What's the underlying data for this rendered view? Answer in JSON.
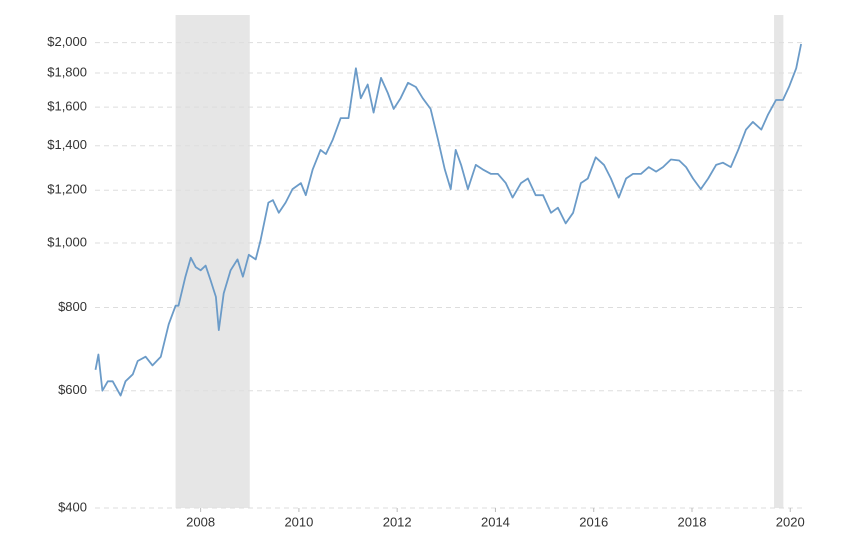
{
  "chart_data": {
    "type": "line",
    "log_scale": true,
    "grid": true,
    "xlim": [
      2005.85,
      2020.3
    ],
    "xticks": [
      2008,
      2010,
      2012,
      2014,
      2016,
      2018,
      2020
    ],
    "ylim": [
      400,
      2200
    ],
    "yticks": [
      {
        "value": 400,
        "label": "$400"
      },
      {
        "value": 600,
        "label": "$600"
      },
      {
        "value": 800,
        "label": "$800"
      },
      {
        "value": 1000,
        "label": "$1,000"
      },
      {
        "value": 1200,
        "label": "$1,200"
      },
      {
        "value": 1400,
        "label": "$1,400"
      },
      {
        "value": 1600,
        "label": "$1,600"
      },
      {
        "value": 1800,
        "label": "$1,800"
      },
      {
        "value": 2000,
        "label": "$2,000"
      }
    ],
    "recessions": [
      [
        2007.49,
        2009.0
      ],
      [
        2019.67,
        2019.86
      ]
    ],
    "recession_color": "#e6e6e6",
    "x": [
      2005.86,
      2005.92,
      2006.0,
      2006.11,
      2006.21,
      2006.37,
      2006.47,
      2006.62,
      2006.72,
      2006.88,
      2007.02,
      2007.19,
      2007.35,
      2007.49,
      2007.55,
      2007.69,
      2007.8,
      2007.9,
      2008.0,
      2008.1,
      2008.2,
      2008.31,
      2008.37,
      2008.47,
      2008.61,
      2008.75,
      2008.86,
      2008.98,
      2009.12,
      2009.22,
      2009.38,
      2009.47,
      2009.59,
      2009.73,
      2009.87,
      2010.04,
      2010.14,
      2010.28,
      2010.44,
      2010.55,
      2010.69,
      2010.85,
      2011.01,
      2011.16,
      2011.26,
      2011.4,
      2011.52,
      2011.67,
      2011.81,
      2011.93,
      2012.07,
      2012.22,
      2012.38,
      2012.52,
      2012.68,
      2012.83,
      2012.97,
      2013.09,
      2013.19,
      2013.3,
      2013.44,
      2013.6,
      2013.74,
      2013.91,
      2014.05,
      2014.21,
      2014.35,
      2014.52,
      2014.66,
      2014.82,
      2014.97,
      2015.13,
      2015.27,
      2015.43,
      2015.58,
      2015.74,
      2015.88,
      2016.04,
      2016.21,
      2016.35,
      2016.51,
      2016.66,
      2016.8,
      2016.96,
      2017.12,
      2017.27,
      2017.41,
      2017.57,
      2017.74,
      2017.88,
      2018.02,
      2018.18,
      2018.33,
      2018.49,
      2018.63,
      2018.79,
      2018.94,
      2019.1,
      2019.24,
      2019.41,
      2019.55,
      2019.71,
      2019.85,
      2019.98,
      2020.12,
      2020.22
    ],
    "series": [
      {
        "color": "#6b9bc8",
        "values": [
          645,
          680,
          600,
          620,
          620,
          590,
          620,
          635,
          665,
          675,
          655,
          675,
          755,
          805,
          805,
          890,
          950,
          920,
          910,
          925,
          880,
          830,
          740,
          840,
          910,
          945,
          890,
          960,
          945,
          1010,
          1150,
          1160,
          1110,
          1150,
          1205,
          1230,
          1180,
          1290,
          1380,
          1360,
          1430,
          1540,
          1540,
          1830,
          1650,
          1730,
          1570,
          1770,
          1680,
          1590,
          1650,
          1740,
          1715,
          1650,
          1590,
          1430,
          1290,
          1205,
          1380,
          1310,
          1205,
          1310,
          1290,
          1270,
          1270,
          1230,
          1170,
          1230,
          1250,
          1180,
          1180,
          1110,
          1130,
          1070,
          1110,
          1230,
          1250,
          1345,
          1310,
          1250,
          1170,
          1250,
          1270,
          1270,
          1300,
          1280,
          1300,
          1335,
          1330,
          1300,
          1250,
          1205,
          1250,
          1310,
          1320,
          1300,
          1380,
          1480,
          1520,
          1480,
          1560,
          1640,
          1640,
          1720,
          1830,
          1990
        ]
      }
    ]
  }
}
